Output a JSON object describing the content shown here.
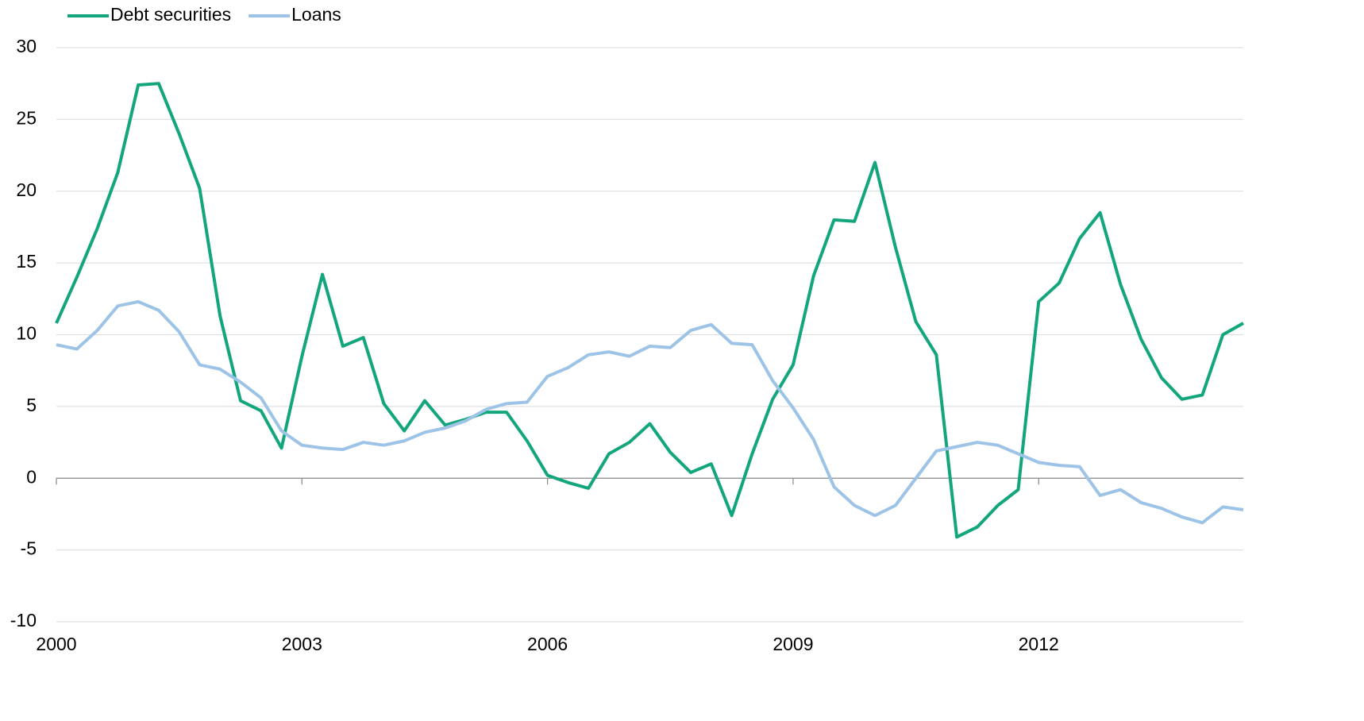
{
  "chart_data": {
    "type": "line",
    "x": [
      2000,
      2000.25,
      2000.5,
      2000.75,
      2001,
      2001.25,
      2001.5,
      2001.75,
      2002,
      2002.25,
      2002.5,
      2002.75,
      2003,
      2003.25,
      2003.5,
      2003.75,
      2004,
      2004.25,
      2004.5,
      2004.75,
      2005,
      2005.25,
      2005.5,
      2005.75,
      2006,
      2006.25,
      2006.5,
      2006.75,
      2007,
      2007.25,
      2007.5,
      2007.75,
      2008,
      2008.25,
      2008.5,
      2008.75,
      2009,
      2009.25,
      2009.5,
      2009.75,
      2010,
      2010.25,
      2010.5,
      2010.75,
      2011,
      2011.25,
      2011.5,
      2011.75,
      2012,
      2012.25,
      2012.5,
      2012.75,
      2013,
      2013.25,
      2013.5,
      2013.75,
      2014,
      2014.25,
      2014.5
    ],
    "series": [
      {
        "name": "Debt securities",
        "color": "#13a67c",
        "values": [
          10.8,
          14,
          17.4,
          21.3,
          27.4,
          27.5,
          24,
          20.2,
          11.3,
          5.4,
          4.7,
          2.1,
          8.5,
          14.2,
          9.2,
          9.8,
          5.2,
          3.3,
          5.4,
          3.7,
          4.1,
          4.6,
          4.6,
          2.6,
          0.2,
          -0.3,
          -0.7,
          1.7,
          2.5,
          3.8,
          1.8,
          0.4,
          1.0,
          -2.6,
          1.7,
          5.5,
          7.9,
          14.1,
          18.0,
          17.9,
          22.0,
          16.1,
          10.9,
          8.6,
          -4.1,
          -3.4,
          -1.9,
          -0.8,
          12.3,
          13.6,
          16.7,
          18.5,
          13.5,
          9.7,
          7.0,
          5.5,
          5.8,
          10.0,
          10.8
        ]
      },
      {
        "name": "Loans",
        "color": "#9dc3e6",
        "values": [
          9.3,
          9.0,
          10.3,
          12.0,
          12.3,
          11.7,
          10.2,
          7.9,
          7.6,
          6.7,
          5.6,
          3.3,
          2.3,
          2.1,
          2.0,
          2.5,
          2.3,
          2.6,
          3.2,
          3.5,
          4.0,
          4.8,
          5.2,
          5.3,
          7.1,
          7.7,
          8.6,
          8.8,
          8.5,
          9.2,
          9.1,
          10.3,
          10.7,
          9.4,
          9.3,
          6.8,
          4.9,
          2.7,
          -0.6,
          -1.9,
          -2.6,
          -1.9,
          0.0,
          1.9,
          2.2,
          2.5,
          2.3,
          1.7,
          1.1,
          0.9,
          0.8,
          -1.2,
          -0.8,
          -1.7,
          -2.1,
          -2.7,
          -3.1,
          -2.0,
          -2.2
        ]
      }
    ],
    "xlim": [
      2000,
      2014.5
    ],
    "xticks": [
      2000,
      2003,
      2006,
      2009,
      2012
    ],
    "ylim": [
      -10,
      30
    ],
    "yticks": [
      -10,
      -5,
      0,
      5,
      10,
      15,
      20,
      25,
      30
    ],
    "grid": true,
    "legend": "top-left"
  }
}
